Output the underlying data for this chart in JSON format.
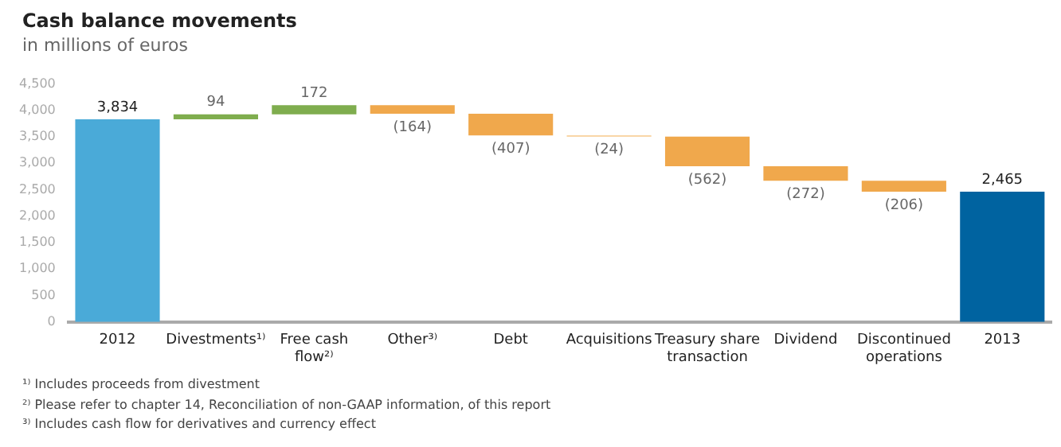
{
  "chart_data": {
    "type": "bar",
    "title": "Cash balance movements",
    "subtitle": "in millions of euros",
    "categories": [
      "2012",
      "Divestments¹⁾",
      "Free cash flow²⁾",
      "Other³⁾",
      "Debt",
      "Acquisitions",
      "Treasury share transaction",
      "Dividend",
      "Discontinued operations",
      "2013"
    ],
    "values": [
      3834,
      94,
      172,
      -164,
      -407,
      -24,
      -562,
      -272,
      -206,
      2465
    ],
    "base": [
      0,
      3834,
      3928,
      4100,
      3936,
      3529,
      3505,
      2943,
      2671,
      0
    ],
    "colors": [
      "#4aaad8",
      "#7fad4e",
      "#7fad4e",
      "#f0a84c",
      "#f0a84c",
      "#f7c98a",
      "#f0a84c",
      "#f0a84c",
      "#f0a84c",
      "#0063a0"
    ],
    "value_labels": [
      "3,834",
      "94",
      "172",
      "(164)",
      "(407)",
      "(24)",
      "(562)",
      "(272)",
      "(206)",
      "2,465"
    ],
    "ylim": [
      0,
      4500
    ],
    "yticks": [
      0,
      500,
      {
        "value": 1000,
        "label": "1,000"
      },
      {
        "value": 1500,
        "label": "1,500"
      },
      {
        "value": 2000,
        "label": "2,000"
      },
      {
        "value": 2500,
        "label": "2,500"
      },
      {
        "value": 3000,
        "label": "3,000"
      },
      {
        "value": 3500,
        "label": "3,500"
      },
      {
        "value": 4000,
        "label": "4,000"
      },
      {
        "value": 4500,
        "label": "4,500"
      }
    ],
    "grid": false,
    "legend": false,
    "annotations": [
      "¹⁾ Includes proceeds from divestment",
      "²⁾ Please refer to chapter 14, Reconciliation of non-GAAP information, of this report",
      "³⁾ Includes cash flow for derivatives and currency effect"
    ]
  }
}
